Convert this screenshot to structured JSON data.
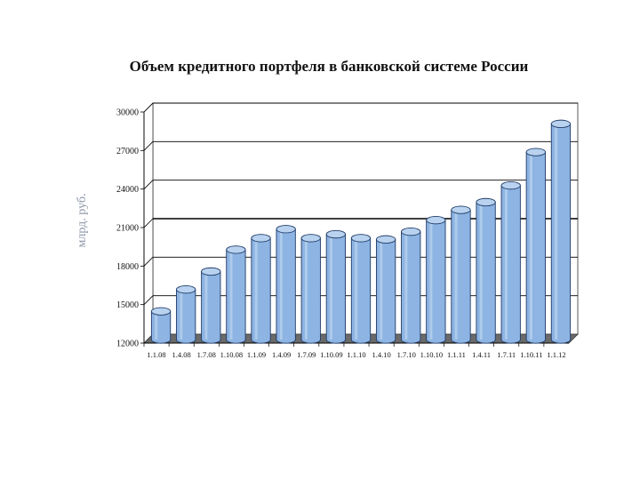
{
  "chart_data": {
    "type": "bar",
    "title": "Объем кредитного портфеля в банковской системе России",
    "xlabel": "",
    "ylabel": "млрд. руб.",
    "ylim": [
      12000,
      30000
    ],
    "yticks": [
      "12000",
      "15000",
      "18000",
      "21000",
      "24000",
      "27000",
      "30000"
    ],
    "categories": [
      "1.1.08",
      "1.4.08",
      "1.7.08",
      "1.10.08",
      "1.1.09",
      "1.4.09",
      "1.7.09",
      "1.10.09",
      "1.1.10",
      "1.4.10",
      "1.7.10",
      "1.10.10",
      "1.1.11",
      "1.4.11",
      "1.7.11",
      "1.10.11",
      "1.1.12"
    ],
    "values": [
      14200,
      15900,
      17300,
      19000,
      19900,
      20600,
      19900,
      20200,
      19900,
      19800,
      20400,
      21300,
      22100,
      22700,
      24000,
      26600,
      28800
    ],
    "style": {
      "bar_fill": "#8db4e2",
      "bar_top": "#b8d2ef",
      "bar_edge": "#1f3b68",
      "grid": "#000000",
      "floor": "#6a6a6a",
      "back_wall": "#ffffff",
      "grid_on": true,
      "legend": "none"
    }
  }
}
